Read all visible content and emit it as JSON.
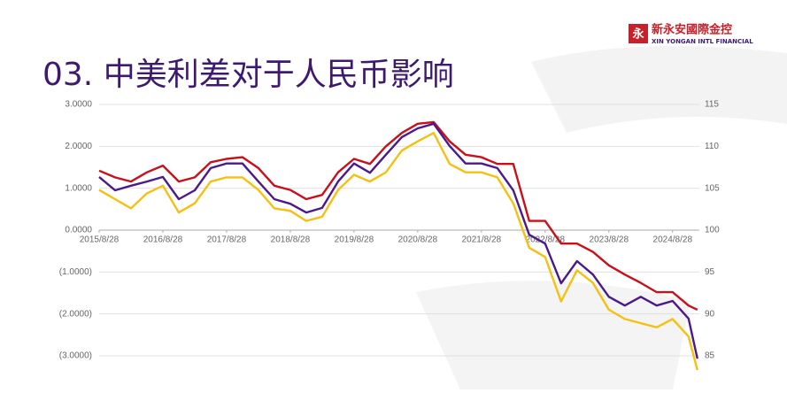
{
  "logo": {
    "name": "新永安國際金控",
    "subtitle": "XIN YONGAN INTL FINANCIAL"
  },
  "chart_data": {
    "type": "line",
    "title": "03. 中美利差对于人民币影响",
    "x": [
      2015.66,
      2015.91,
      2016.16,
      2016.41,
      2016.66,
      2016.91,
      2017.16,
      2017.41,
      2017.66,
      2017.91,
      2018.16,
      2018.41,
      2018.66,
      2018.91,
      2019.16,
      2019.41,
      2019.66,
      2019.91,
      2020.16,
      2020.41,
      2020.66,
      2020.91,
      2021.16,
      2021.41,
      2021.66,
      2021.91,
      2022.16,
      2022.41,
      2022.66,
      2022.91,
      2023.16,
      2023.41,
      2023.66,
      2023.91,
      2024.16,
      2024.41,
      2024.66,
      2024.91,
      2025.05
    ],
    "xlim": [
      2015.66,
      2025.08
    ],
    "xticks": [
      {
        "value": 2015.66,
        "label": "2015/8/28"
      },
      {
        "value": 2016.66,
        "label": "2016/8/28"
      },
      {
        "value": 2017.66,
        "label": "2017/8/28"
      },
      {
        "value": 2018.66,
        "label": "2018/8/28"
      },
      {
        "value": 2019.66,
        "label": "2019/8/28"
      },
      {
        "value": 2020.66,
        "label": "2020/8/28"
      },
      {
        "value": 2021.66,
        "label": "2021/8/28"
      },
      {
        "value": 2022.66,
        "label": "2022/8/28"
      },
      {
        "value": 2023.66,
        "label": "2023/8/28"
      },
      {
        "value": 2024.66,
        "label": "2024/8/28"
      }
    ],
    "ylim": [
      -3.38,
      3.0
    ],
    "yticks": [
      {
        "value": 3,
        "label": "3.0000"
      },
      {
        "value": 2,
        "label": "2.0000"
      },
      {
        "value": 1,
        "label": "1.0000"
      },
      {
        "value": 0,
        "label": "0.0000"
      },
      {
        "value": -1,
        "label": "(1.0000)"
      },
      {
        "value": -2,
        "label": "(2.0000)"
      },
      {
        "value": -3,
        "label": "(3.0000)"
      }
    ],
    "negative_tick_color": "#d42020",
    "y2lim": [
      83.1,
      115
    ],
    "y2ticks": [
      115,
      110,
      105,
      100,
      95,
      90,
      85
    ],
    "grid": true,
    "series": [
      {
        "color": "#4a1a8c",
        "values": [
          1.27,
          0.95,
          1.06,
          1.16,
          1.27,
          0.74,
          0.95,
          1.48,
          1.59,
          1.59,
          1.16,
          0.74,
          0.63,
          0.42,
          0.53,
          1.16,
          1.59,
          1.37,
          1.8,
          2.22,
          2.43,
          2.54,
          2.01,
          1.59,
          1.59,
          1.48,
          0.95,
          -0.11,
          -0.32,
          -1.27,
          -0.74,
          -1.06,
          -1.59,
          -1.8,
          -1.59,
          -1.8,
          -1.69,
          -2.11,
          -3.07
        ]
      },
      {
        "color": "#c8101a",
        "axis": "y2",
        "values": [
          107.1,
          106.3,
          105.8,
          106.9,
          107.7,
          105.8,
          106.3,
          108.1,
          108.5,
          108.7,
          107.4,
          105.3,
          104.8,
          103.7,
          104.2,
          106.9,
          108.5,
          107.9,
          110.0,
          111.6,
          112.7,
          112.9,
          110.6,
          109.0,
          108.7,
          107.9,
          107.9,
          101.1,
          101.1,
          98.4,
          98.4,
          97.4,
          95.8,
          94.7,
          93.7,
          92.6,
          92.6,
          91.0,
          90.5
        ]
      },
      {
        "color": "#f5c010",
        "axis": "y2",
        "values": [
          104.8,
          103.7,
          102.6,
          104.4,
          105.3,
          102.1,
          103.2,
          105.8,
          106.3,
          106.3,
          104.8,
          102.6,
          102.3,
          101.1,
          101.6,
          104.8,
          106.6,
          105.8,
          106.9,
          109.5,
          110.6,
          111.6,
          107.9,
          106.9,
          106.9,
          106.3,
          103.2,
          97.9,
          96.8,
          91.5,
          95.2,
          93.7,
          90.5,
          89.4,
          88.9,
          88.4,
          89.4,
          87.3,
          83.3
        ]
      }
    ]
  }
}
